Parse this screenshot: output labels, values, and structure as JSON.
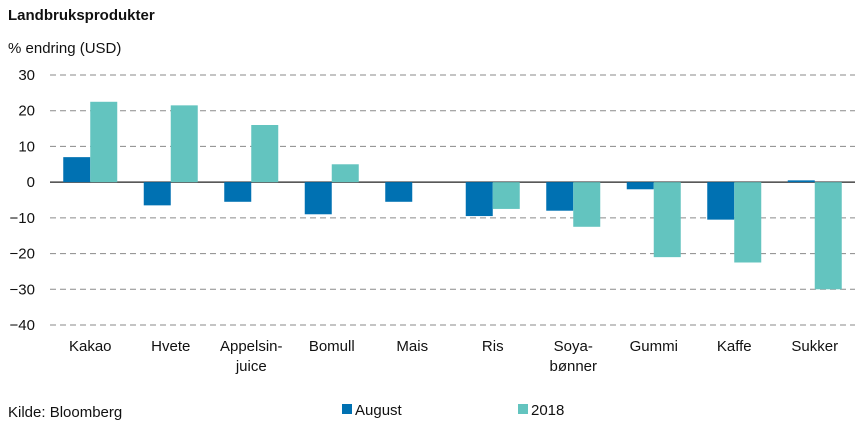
{
  "chart_data": {
    "type": "bar",
    "title": "Landbruksprodukter",
    "ylabel": "% endring (USD)",
    "xlabel": "",
    "ylim": [
      -40,
      30
    ],
    "yticks": [
      "30",
      "20",
      "10",
      "0",
      "-10",
      "-20",
      "-30",
      "-40"
    ],
    "grid": true,
    "categories": [
      [
        "Kakao"
      ],
      [
        "Hvete"
      ],
      [
        "Appelsin-",
        "juice"
      ],
      [
        "Bomull"
      ],
      [
        "Mais"
      ],
      [
        "Ris"
      ],
      [
        "Soya-",
        "bønner"
      ],
      [
        "Gummi"
      ],
      [
        "Kaffe"
      ],
      [
        "Sukker"
      ]
    ],
    "series": [
      {
        "name": "August",
        "color": "#0071b2",
        "values": [
          7,
          -6.5,
          -5.5,
          -9,
          -5.5,
          -9.5,
          -8,
          -2,
          -10.5,
          0.5
        ]
      },
      {
        "name": "2018",
        "color": "#63c4bf",
        "values": [
          22.5,
          21.5,
          16,
          5,
          0,
          -7.5,
          -12.5,
          -21,
          -22.5,
          -30
        ]
      }
    ],
    "legend_position": "bottom",
    "source": "Kilde: Bloomberg"
  }
}
